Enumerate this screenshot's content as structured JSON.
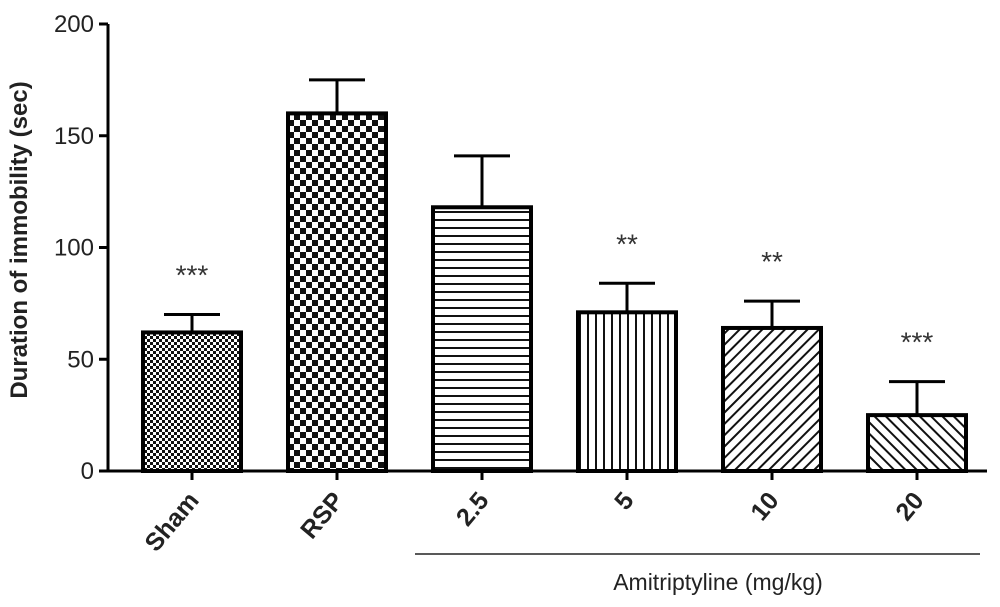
{
  "chart_data": {
    "type": "bar",
    "ylabel": "Duration of immobility (sec)",
    "ylim": [
      0,
      200
    ],
    "yticks": [
      0,
      50,
      100,
      150,
      200
    ],
    "categories": [
      "Sham",
      "RSP",
      "2.5",
      "5",
      "10",
      "20"
    ],
    "values": [
      62,
      160,
      118,
      71,
      64,
      25
    ],
    "errors": [
      8,
      15,
      23,
      13,
      12,
      15
    ],
    "significance": [
      "***",
      "",
      "",
      "**",
      "**",
      "***"
    ],
    "patterns": [
      "fine-checker",
      "coarse-checker",
      "horizontal-lines",
      "vertical-lines",
      "diagonal-lines",
      "diagonal-lines-reverse"
    ],
    "group_label": "Amitriptyline (mg/kg)",
    "group_covers": [
      "2.5",
      "5",
      "10",
      "20"
    ],
    "bar_fill": "#ffffff",
    "stroke_color": "#000000"
  }
}
